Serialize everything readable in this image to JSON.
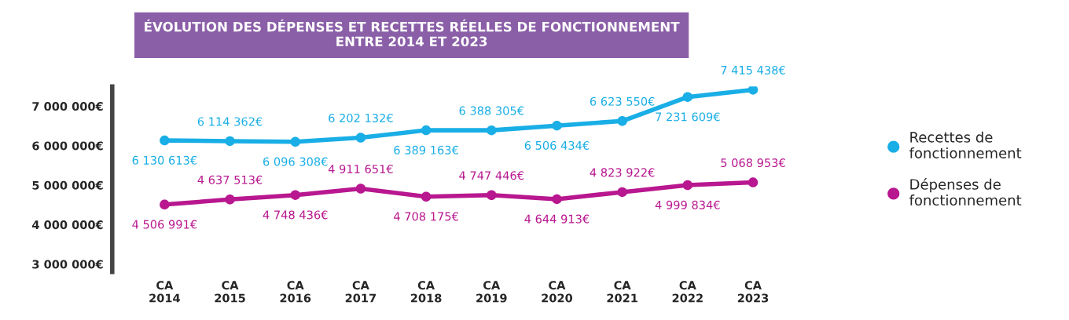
{
  "chart_data": {
    "type": "line",
    "title": "ÉVOLUTION DES DÉPENSES ET RECETTES RÉELLES DE FONCTIONNEMENT\nENTRE 2014 ET 2023",
    "categories": [
      "CA\n2014",
      "CA\n2015",
      "CA\n2016",
      "CA\n2017",
      "CA\n2018",
      "CA\n2019",
      "CA\n2020",
      "CA\n2021",
      "CA\n2022",
      "CA\n2023"
    ],
    "series": [
      {
        "name": "Recettes de\nfonctionnement",
        "color": "#19aee6",
        "values": [
          6130613,
          6114362,
          6096308,
          6202132,
          6389163,
          6388305,
          6506434,
          6623550,
          7231609,
          7415438
        ],
        "value_labels": [
          "6 130 613€",
          "6 114 362€",
          "6 096 308€",
          "6 202 132€",
          "6 389 163€",
          "6 388 305€",
          "6 506 434€",
          "6 623 550€",
          "7 231 609€",
          "7 415 438€"
        ]
      },
      {
        "name": "Dépenses de\nfonctionnement",
        "color": "#b8178f",
        "values": [
          4506991,
          4637513,
          4748436,
          4911651,
          4708175,
          4747446,
          4644913,
          4823922,
          4999834,
          5068953
        ],
        "value_labels": [
          "4 506 991€",
          "4 637 513€",
          "4 748 436€",
          "4 911 651€",
          "4 708 175€",
          "4 747 446€",
          "4 644 913€",
          "4 823 922€",
          "4 999 834€",
          "5 068 953€"
        ]
      }
    ],
    "ylim": [
      2800000,
      7500000
    ],
    "yticks": [
      {
        "value": 3000000,
        "label": "3 000 000€"
      },
      {
        "value": 4000000,
        "label": "4 000 000€"
      },
      {
        "value": 5000000,
        "label": "5 000 000€"
      },
      {
        "value": 6000000,
        "label": "6 000 000€"
      },
      {
        "value": 7000000,
        "label": "7 000 000€"
      }
    ],
    "marker": "circle",
    "line_style": "solid",
    "legend": "right",
    "grid": false
  }
}
